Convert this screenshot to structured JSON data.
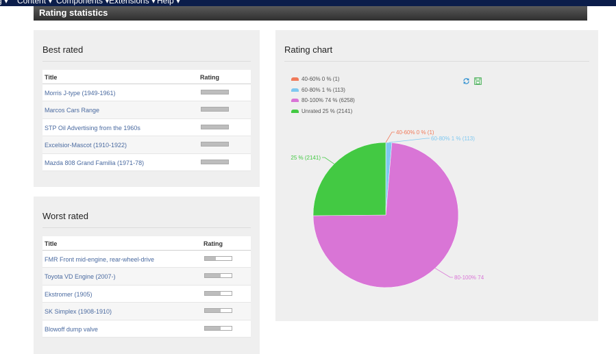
{
  "nav": {
    "items": [
      "g ▾",
      "Content ▾",
      "Components ▾",
      "Extensions ▾",
      "Help ▾"
    ]
  },
  "page": {
    "title": "Rating statistics"
  },
  "best_rated": {
    "heading": "Best rated",
    "col_title": "Title",
    "col_rating": "Rating",
    "rows": [
      {
        "title": "Morris J-type (1949-1961)",
        "rating": 1.0
      },
      {
        "title": "Marcos Cars Range",
        "rating": 1.0
      },
      {
        "title": "STP Oil Advertising from the 1960s",
        "rating": 1.0
      },
      {
        "title": "Excelsior-Mascot (1910-1922)",
        "rating": 1.0
      },
      {
        "title": "Mazda 808 Grand Familia (1971-78)",
        "rating": 1.0
      }
    ]
  },
  "worst_rated": {
    "heading": "Worst rated",
    "col_title": "Title",
    "col_rating": "Rating",
    "rows": [
      {
        "title": "FMR Front mid-engine, rear-wheel-drive",
        "rating": 0.4
      },
      {
        "title": "Toyota VD Engine (2007-)",
        "rating": 0.6
      },
      {
        "title": "Ekstromer (1905)",
        "rating": 0.6
      },
      {
        "title": "SK Simplex (1908-1910)",
        "rating": 0.6
      },
      {
        "title": "Blowoff dump valve",
        "rating": 0.6
      }
    ]
  },
  "rating_chart": {
    "heading": "Rating chart",
    "refresh_icon": "refresh-icon",
    "save_icon": "save-icon",
    "legend": [
      {
        "label": "40-60% 0 % (1)",
        "color": "#f07a5a"
      },
      {
        "label": "60-80% 1 % (113)",
        "color": "#7fc8f0"
      },
      {
        "label": "80-100% 74 % (6258)",
        "color": "#d975d6"
      },
      {
        "label": "Unrated 25 % (2141)",
        "color": "#43c943"
      }
    ]
  },
  "chart_data": {
    "type": "pie",
    "title": "",
    "categories": [
      "40-60%",
      "60-80%",
      "80-100%",
      "Unrated"
    ],
    "values": [
      1,
      113,
      6258,
      2141
    ],
    "colors": [
      "#f07a5a",
      "#7fc8f0",
      "#d975d6",
      "#43c943"
    ],
    "data_labels": [
      "40-60% 0 % (1)",
      "60-80% 1 % (113)",
      "80-100% 74",
      "25 % (2141)"
    ],
    "legend_position": "top-left"
  }
}
